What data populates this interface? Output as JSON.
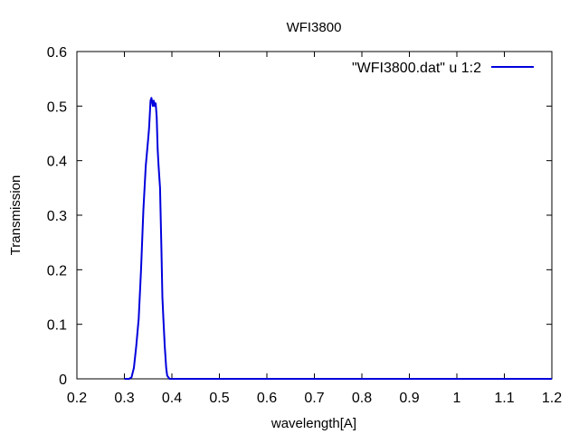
{
  "chart_data": {
    "type": "line",
    "title": "WFI3800",
    "xlabel": "wavelength[A]",
    "ylabel": "Transmission",
    "xlim": [
      0.2,
      1.2
    ],
    "ylim": [
      0,
      0.6
    ],
    "xticks": [
      0.2,
      0.3,
      0.4,
      0.5,
      0.6,
      0.7,
      0.8,
      0.9,
      1,
      1.1,
      1.2
    ],
    "xtick_labels": [
      "0.2",
      "0.3",
      "0.4",
      "0.5",
      "0.6",
      "0.7",
      "0.8",
      "0.9",
      "1",
      "1.1",
      "1.2"
    ],
    "yticks": [
      0,
      0.1,
      0.2,
      0.3,
      0.4,
      0.5,
      0.6
    ],
    "ytick_labels": [
      "0",
      "0.1",
      "0.2",
      "0.3",
      "0.4",
      "0.5",
      "0.6"
    ],
    "grid": false,
    "legend_position": "top-right",
    "series": [
      {
        "name": "\"WFI3800.dat\" u 1:2",
        "color": "#0000dd",
        "x": [
          0.3,
          0.31,
          0.315,
          0.32,
          0.325,
          0.33,
          0.335,
          0.34,
          0.345,
          0.35,
          0.352,
          0.355,
          0.357,
          0.36,
          0.362,
          0.364,
          0.366,
          0.368,
          0.37,
          0.372,
          0.375,
          0.378,
          0.38,
          0.382,
          0.385,
          0.388,
          0.39,
          0.395,
          0.4,
          0.45,
          0.5,
          0.6,
          0.7,
          0.8,
          0.9,
          1.0,
          1.1,
          1.2
        ],
        "y": [
          0.0,
          0.0,
          0.003,
          0.02,
          0.06,
          0.11,
          0.2,
          0.31,
          0.39,
          0.44,
          0.46,
          0.51,
          0.515,
          0.5,
          0.51,
          0.5,
          0.505,
          0.48,
          0.42,
          0.39,
          0.35,
          0.24,
          0.15,
          0.11,
          0.06,
          0.02,
          0.006,
          0.0,
          0.0,
          0.0,
          0.0,
          0.0,
          0.0,
          0.0,
          0.0,
          0.0,
          0.0,
          0.0
        ]
      }
    ]
  }
}
